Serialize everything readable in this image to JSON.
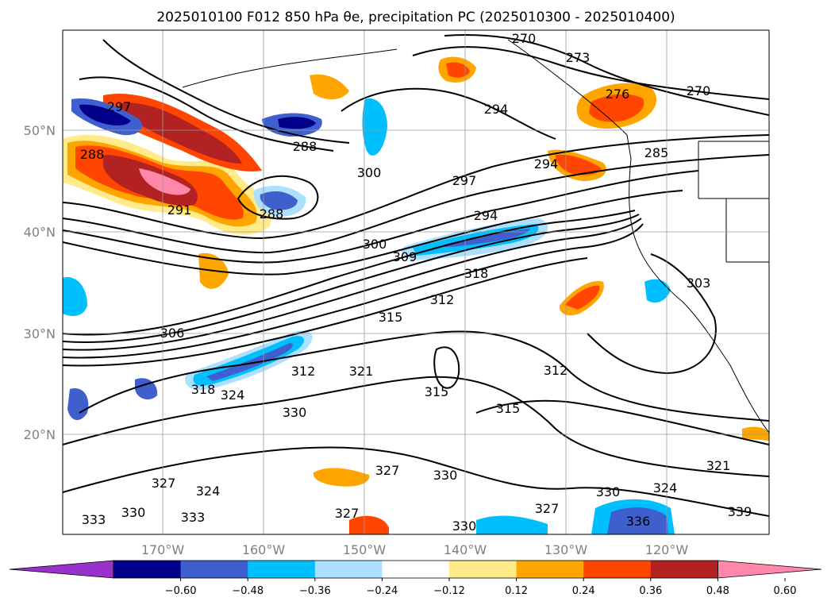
{
  "title": "2025010100 F012 850 hPa θe, precipitation PC (2025010300 - 2025010400)",
  "lat_labels": [
    "50°N",
    "40°N",
    "30°N",
    "20°N"
  ],
  "lon_labels": [
    "170°W",
    "160°W",
    "150°W",
    "140°W",
    "130°W",
    "120°W"
  ],
  "colorbar": {
    "ticks": [
      "−0.60",
      "−0.48",
      "−0.36",
      "−0.24",
      "−0.12",
      "0.12",
      "0.24",
      "0.36",
      "0.48",
      "0.60"
    ],
    "colors": [
      "#9932CC",
      "#00008B",
      "#3F5FCF",
      "#00BFFF",
      "#ADE0FF",
      "#FFFFFF",
      "#FFEB8A",
      "#FFA500",
      "#FF4500",
      "#B22222",
      "#FF88AA"
    ]
  },
  "contour_labels": [
    "270",
    "273",
    "276",
    "270",
    "294",
    "288",
    "294",
    "297",
    "300",
    "291",
    "288",
    "285",
    "288",
    "294",
    "297",
    "300",
    "309",
    "318",
    "303",
    "312",
    "315",
    "306",
    "312",
    "321",
    "318",
    "324",
    "330",
    "312",
    "315",
    "315",
    "321",
    "327",
    "330",
    "327",
    "324",
    "330",
    "333",
    "336",
    "339",
    "333",
    "330",
    "327",
    "324",
    "327",
    "330"
  ]
}
